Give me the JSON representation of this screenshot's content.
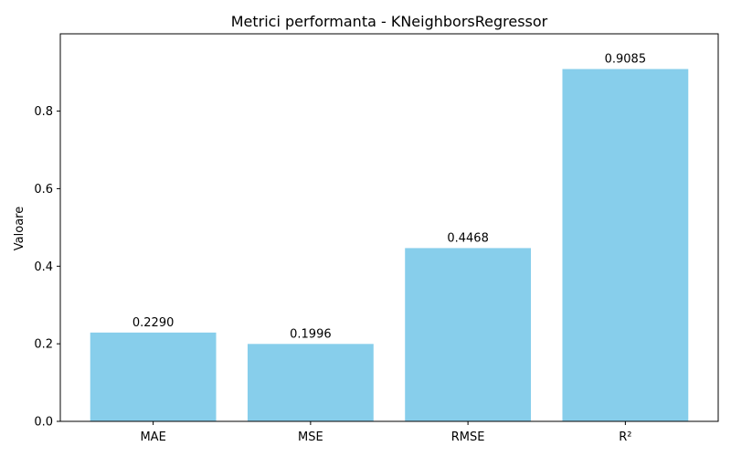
{
  "chart_data": {
    "type": "bar",
    "title": "Metrici performanta - KNeighborsRegressor",
    "xlabel": "",
    "ylabel": "Valoare",
    "categories": [
      "MAE",
      "MSE",
      "RMSE",
      "R²"
    ],
    "values": [
      0.229,
      0.1996,
      0.4468,
      0.9085
    ],
    "data_labels": [
      "0.2290",
      "0.1996",
      "0.4468",
      "0.9085"
    ],
    "ylim": [
      0,
      0.9993
    ],
    "yticks": [
      0.0,
      0.2,
      0.4,
      0.6,
      0.8
    ],
    "ytick_labels": [
      "0.0",
      "0.2",
      "0.4",
      "0.6",
      "0.8"
    ],
    "bar_color": "#87ceeb",
    "grid": false,
    "legend": "none"
  }
}
